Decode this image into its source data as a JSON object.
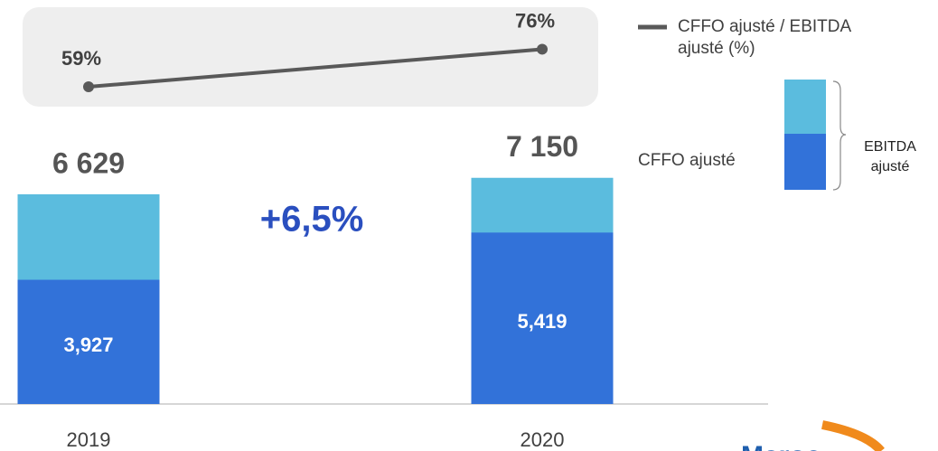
{
  "chart_data": {
    "type": "bar",
    "categories": [
      "2019",
      "2020"
    ],
    "ylim": [
      0,
      8000
    ],
    "y2lim": [
      50,
      95
    ],
    "series": [
      {
        "name": "EBITDA ajusté",
        "color": "#5bbcde",
        "values": [
          6629,
          7150
        ],
        "value_labels": [
          "6 629",
          "7 150"
        ]
      },
      {
        "name": "CFFO ajusté",
        "color": "#3272d9",
        "values": [
          3927,
          5419
        ],
        "value_labels": [
          "3,927",
          "5,419"
        ]
      },
      {
        "name": "CFFO ajusté / EBITDA ajusté (%)",
        "type": "line",
        "axis": "y2",
        "color": "#595959",
        "values": [
          59,
          76
        ],
        "value_labels": [
          "59%",
          "76%"
        ]
      }
    ],
    "annotation": "+6,5%",
    "logo_text": "Maroc"
  }
}
